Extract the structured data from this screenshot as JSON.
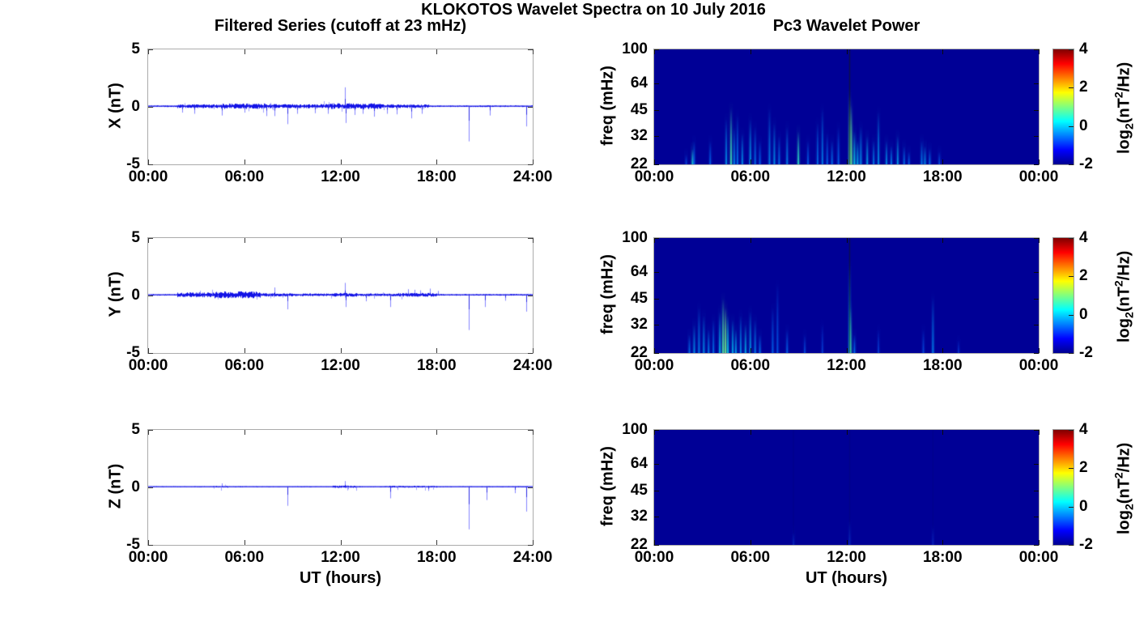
{
  "figure": {
    "title": "KLOKOTOS Wavelet Spectra on 10 July 2016",
    "left_title": "Filtered Series (cutoff at 23 mHz)",
    "right_title": "Pc3 Wavelet Power",
    "xlabel": "UT (hours)"
  },
  "colorbar": {
    "ticks": [
      "4",
      "2",
      "0",
      "-2"
    ],
    "range": [
      -2,
      4
    ],
    "gradient": {
      "colors": [
        "#7F0000",
        "#FF0000",
        "#FFFF00",
        "#00FFFF",
        "#0000FF",
        "#000090"
      ],
      "positions": [
        0,
        12.5,
        37.5,
        62.5,
        87.5,
        100
      ]
    },
    "label": {
      "base": "log",
      "sub": "2",
      "mid": "(nT",
      "sup": "2",
      "end": "/Hz)"
    }
  },
  "chart_data": [
    {
      "type": "line",
      "name": "X filtered series",
      "ylabel": "X (nT)",
      "ylim": [
        -5,
        5
      ],
      "yticks": [
        5,
        0,
        -5
      ],
      "x_tick_labels": [
        "00:00",
        "06:00",
        "12:00",
        "18:00",
        "24:00"
      ],
      "x_range_hours": [
        0,
        24
      ],
      "line_color": "#1212e6",
      "noise": {
        "base": 0.05,
        "bursts": [
          [
            1.8,
            4.5,
            0.11
          ],
          [
            4.5,
            7.3,
            0.16
          ],
          [
            7.3,
            11.3,
            0.12
          ],
          [
            11.3,
            14.6,
            0.17
          ],
          [
            14.6,
            17.5,
            0.11
          ]
        ]
      },
      "spikes": [
        [
          2.1,
          -0.5
        ],
        [
          2.9,
          -0.6
        ],
        [
          4.6,
          -0.75
        ],
        [
          6.0,
          -0.5
        ],
        [
          7.4,
          -0.8
        ],
        [
          7.9,
          -0.8
        ],
        [
          8.7,
          -1.5
        ],
        [
          9.3,
          -0.6
        ],
        [
          10.4,
          -0.55
        ],
        [
          11.2,
          -0.6
        ],
        [
          12.3,
          1.7
        ],
        [
          12.35,
          -1.4
        ],
        [
          12.9,
          -0.7
        ],
        [
          13.4,
          -0.6
        ],
        [
          14.1,
          -0.85
        ],
        [
          14.9,
          -0.6
        ],
        [
          15.5,
          -0.65
        ],
        [
          16.4,
          -1.0
        ],
        [
          17.1,
          -0.6
        ],
        [
          20.0,
          -3.0
        ],
        [
          21.3,
          -0.75
        ],
        [
          23.6,
          -1.7
        ]
      ]
    },
    {
      "type": "heatmap",
      "name": "X Pc3 wavelet power",
      "ylabel": "freq (mHz)",
      "yticks": [
        100,
        64,
        45,
        32,
        22
      ],
      "freq_range_mHz": [
        22,
        100
      ],
      "log_freq": true,
      "x_tick_labels": [
        "00:00",
        "06:00",
        "12:00",
        "18:00",
        "00:00"
      ],
      "background": "#000096",
      "power_range_log2": [
        -2,
        4
      ],
      "events": [
        [
          2.0,
          25,
          0.25
        ],
        [
          2.4,
          27,
          0.75
        ],
        [
          2.5,
          30,
          0.3
        ],
        [
          3.5,
          30,
          0.35
        ],
        [
          4.5,
          40,
          0.5
        ],
        [
          4.8,
          46,
          0.85
        ],
        [
          5.0,
          36,
          0.45
        ],
        [
          5.2,
          42,
          0.4
        ],
        [
          5.5,
          33,
          0.5
        ],
        [
          6.0,
          40,
          0.55
        ],
        [
          6.3,
          36,
          0.4
        ],
        [
          6.6,
          30,
          0.35
        ],
        [
          7.2,
          46,
          0.45
        ],
        [
          7.5,
          38,
          0.5
        ],
        [
          7.8,
          32,
          0.4
        ],
        [
          8.3,
          36,
          0.45
        ],
        [
          9.0,
          34,
          0.8
        ],
        [
          9.6,
          30,
          0.35
        ],
        [
          10.2,
          38,
          0.4
        ],
        [
          10.5,
          46,
          0.45
        ],
        [
          10.8,
          33,
          0.35
        ],
        [
          11.1,
          30,
          0.4
        ],
        [
          11.5,
          36,
          0.35
        ],
        [
          12.2,
          55,
          0.9
        ],
        [
          12.3,
          48,
          0.95
        ],
        [
          12.5,
          34,
          0.7
        ],
        [
          12.7,
          30,
          0.6
        ],
        [
          12.9,
          36,
          0.5
        ],
        [
          13.3,
          32,
          0.55
        ],
        [
          13.7,
          30,
          0.45
        ],
        [
          14.0,
          44,
          0.5
        ],
        [
          14.5,
          30,
          0.5
        ],
        [
          14.8,
          28,
          0.45
        ],
        [
          15.2,
          32,
          0.55
        ],
        [
          15.6,
          28,
          0.4
        ],
        [
          15.9,
          26,
          0.35
        ],
        [
          16.7,
          30,
          0.45
        ],
        [
          16.9,
          28,
          0.5
        ],
        [
          17.2,
          27,
          0.4
        ],
        [
          17.8,
          26,
          0.3
        ]
      ],
      "dark_lines": [
        [
          12.2,
          0.6
        ]
      ]
    },
    {
      "type": "line",
      "name": "Y filtered series",
      "ylabel": "Y (nT)",
      "ylim": [
        -5,
        5
      ],
      "yticks": [
        5,
        0,
        -5
      ],
      "x_tick_labels": [
        "00:00",
        "06:00",
        "12:00",
        "18:00",
        "24:00"
      ],
      "x_range_hours": [
        0,
        24
      ],
      "line_color": "#1212e6",
      "noise": {
        "base": 0.05,
        "bursts": [
          [
            1.8,
            4.0,
            0.14
          ],
          [
            4.0,
            7.0,
            0.2
          ],
          [
            7.0,
            9.0,
            0.1
          ],
          [
            9.0,
            11.5,
            0.08
          ],
          [
            11.5,
            13.0,
            0.11
          ],
          [
            13.0,
            15.5,
            0.08
          ],
          [
            15.5,
            18.0,
            0.11
          ]
        ]
      },
      "spikes": [
        [
          7.9,
          0.7
        ],
        [
          8.7,
          -1.2
        ],
        [
          12.3,
          1.1
        ],
        [
          12.35,
          -1.0
        ],
        [
          13.6,
          -0.5
        ],
        [
          15.1,
          -1.0
        ],
        [
          16.2,
          0.55
        ],
        [
          16.6,
          0.5
        ],
        [
          17.0,
          0.45
        ],
        [
          17.6,
          0.6
        ],
        [
          18.1,
          0.4
        ],
        [
          20.0,
          -3.0
        ],
        [
          21.0,
          -1.0
        ],
        [
          22.3,
          -0.45
        ],
        [
          23.6,
          -1.4
        ]
      ]
    },
    {
      "type": "heatmap",
      "name": "Y Pc3 wavelet power",
      "ylabel": "freq (mHz)",
      "yticks": [
        100,
        64,
        45,
        32,
        22
      ],
      "freq_range_mHz": [
        22,
        100
      ],
      "log_freq": true,
      "x_tick_labels": [
        "00:00",
        "06:00",
        "12:00",
        "18:00",
        "00:00"
      ],
      "background": "#000096",
      "power_range_log2": [
        -2,
        4
      ],
      "events": [
        [
          2.2,
          28,
          0.4
        ],
        [
          2.5,
          32,
          0.5
        ],
        [
          2.8,
          40,
          0.45
        ],
        [
          3.1,
          36,
          0.5
        ],
        [
          3.4,
          30,
          0.45
        ],
        [
          3.7,
          34,
          0.4
        ],
        [
          4.1,
          38,
          0.6
        ],
        [
          4.3,
          45,
          0.9
        ],
        [
          4.45,
          40,
          1.0
        ],
        [
          4.6,
          36,
          0.7
        ],
        [
          4.9,
          34,
          0.6
        ],
        [
          5.1,
          30,
          0.55
        ],
        [
          5.4,
          36,
          0.5
        ],
        [
          5.7,
          32,
          0.6
        ],
        [
          6.0,
          38,
          0.55
        ],
        [
          6.3,
          34,
          0.45
        ],
        [
          6.6,
          28,
          0.4
        ],
        [
          7.4,
          40,
          0.35
        ],
        [
          7.7,
          55,
          0.3
        ],
        [
          8.3,
          30,
          0.35
        ],
        [
          9.4,
          28,
          0.25
        ],
        [
          10.5,
          32,
          0.2
        ],
        [
          12.2,
          70,
          0.6
        ],
        [
          12.25,
          40,
          0.85
        ],
        [
          12.5,
          28,
          0.4
        ],
        [
          14.0,
          30,
          0.2
        ],
        [
          16.8,
          30,
          0.25
        ],
        [
          17.4,
          46,
          0.45
        ],
        [
          19.0,
          26,
          0.15
        ]
      ],
      "dark_lines": [
        [
          12.2,
          0.55
        ]
      ]
    },
    {
      "type": "line",
      "name": "Z filtered series",
      "ylabel": "Z (nT)",
      "ylim": [
        -5,
        5
      ],
      "yticks": [
        5,
        0,
        -5
      ],
      "x_tick_labels": [
        "00:00",
        "06:00",
        "12:00",
        "18:00",
        "24:00"
      ],
      "x_range_hours": [
        0,
        24
      ],
      "line_color": "#1212e6",
      "noise": {
        "base": 0.038,
        "bursts": [
          [
            4.0,
            5.0,
            0.055
          ],
          [
            11.5,
            13.0,
            0.065
          ],
          [
            15.0,
            18.0,
            0.055
          ]
        ]
      },
      "spikes": [
        [
          4.6,
          0.35
        ],
        [
          8.7,
          -1.6
        ],
        [
          12.3,
          0.55
        ],
        [
          15.1,
          -0.95
        ],
        [
          17.5,
          -0.3
        ],
        [
          20.0,
          -3.65
        ],
        [
          21.1,
          -1.1
        ],
        [
          22.9,
          -0.5
        ],
        [
          23.6,
          -2.1
        ]
      ]
    },
    {
      "type": "heatmap",
      "name": "Z Pc3 wavelet power",
      "ylabel": "freq (mHz)",
      "yticks": [
        100,
        64,
        45,
        32,
        22
      ],
      "freq_range_mHz": [
        22,
        100
      ],
      "log_freq": true,
      "x_tick_labels": [
        "00:00",
        "06:00",
        "12:00",
        "18:00",
        "00:00"
      ],
      "background": "#000096",
      "power_range_log2": [
        -2,
        4
      ],
      "events": [
        [
          8.7,
          26,
          0.1
        ],
        [
          12.2,
          30,
          0.12
        ],
        [
          17.4,
          28,
          0.08
        ]
      ],
      "dark_lines": [
        [
          8.7,
          0.06
        ],
        [
          12.2,
          0.1
        ],
        [
          17.4,
          0.06
        ]
      ]
    }
  ]
}
